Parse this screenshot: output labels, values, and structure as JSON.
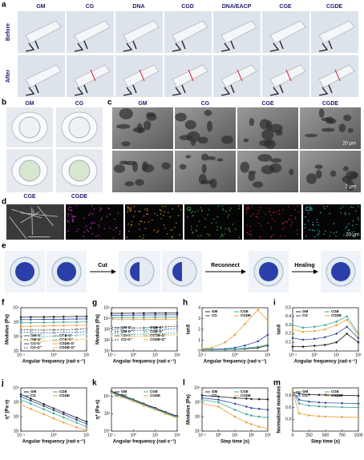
{
  "panels": {
    "a": {
      "label": "a",
      "columns": [
        "GM",
        "CG",
        "DNA",
        "CGD",
        "DNA/EACP",
        "CGE",
        "CGDE"
      ],
      "rows": [
        "Before",
        "After"
      ]
    },
    "b": {
      "label": "b",
      "samples": [
        "GM",
        "CG",
        "CGE",
        "CGDE"
      ]
    },
    "c": {
      "label": "c",
      "columns": [
        "GM",
        "CG",
        "CGE",
        "CGDE"
      ],
      "scale_bars": [
        "20 μm",
        "2 μm"
      ]
    },
    "d": {
      "label": "d",
      "elements": [
        "C",
        "N",
        "O",
        "P",
        "Ca"
      ],
      "scale_bar": "20 μm"
    },
    "e": {
      "label": "e",
      "steps": [
        "Cut",
        "Reconnect",
        "Healing"
      ]
    }
  },
  "chart_data": [
    {
      "type": "line",
      "panel": "f",
      "xlabel": "Angular frequency (rad·s⁻¹)",
      "ylabel": "Modulus (Pa)",
      "xlog": true,
      "ylog": true,
      "legend": "bottom",
      "x": [
        0.1,
        0.2,
        0.5,
        1,
        2,
        5,
        10
      ],
      "xlim": [
        0.1,
        10
      ],
      "ylim": [
        10,
        10000
      ],
      "xticks": [
        {
          "value": 0.1,
          "label": "10⁻¹"
        },
        {
          "value": 1,
          "label": "10⁰"
        },
        {
          "value": 10,
          "label": "10¹"
        }
      ],
      "yticks": [
        {
          "value": 10,
          "label": "10¹"
        },
        {
          "value": 100,
          "label": "10²"
        },
        {
          "value": 1000,
          "label": "10³"
        },
        {
          "value": 10000,
          "label": "10⁴"
        }
      ],
      "series": [
        {
          "name": "GM-G'",
          "color": "#222222",
          "dash": false,
          "values": [
            2200,
            2250,
            2300,
            2350,
            2400,
            2450,
            2500
          ]
        },
        {
          "name": "GM-G''",
          "color": "#222222",
          "dash": true,
          "values": [
            300,
            290,
            280,
            290,
            300,
            320,
            350
          ]
        },
        {
          "name": "CG-G'",
          "color": "#2f4f9f",
          "dash": false,
          "values": [
            1500,
            1520,
            1550,
            1580,
            1600,
            1650,
            1700
          ]
        },
        {
          "name": "CG-G''",
          "color": "#2f4f9f",
          "dash": true,
          "values": [
            200,
            190,
            180,
            185,
            190,
            200,
            220
          ]
        },
        {
          "name": "CGE-G'",
          "color": "#3fa79a",
          "dash": false,
          "values": [
            900,
            920,
            950,
            980,
            1000,
            1020,
            1050
          ]
        },
        {
          "name": "CGE-G''",
          "color": "#3fa79a",
          "dash": true,
          "values": [
            120,
            110,
            100,
            105,
            110,
            120,
            140
          ]
        },
        {
          "name": "CGDE-G'",
          "color": "#e8a23a",
          "dash": false,
          "values": [
            500,
            520,
            540,
            560,
            580,
            600,
            620
          ]
        },
        {
          "name": "CGDE-G''",
          "color": "#e8a23a",
          "dash": true,
          "values": [
            60,
            55,
            50,
            52,
            55,
            60,
            70
          ]
        }
      ]
    },
    {
      "type": "line",
      "panel": "g",
      "xlabel": "Angular frequency (rad·s⁻¹)",
      "ylabel": "Modulus (Pa)",
      "xlog": true,
      "ylog": true,
      "legend": "middle",
      "x": [
        0.1,
        0.3,
        1,
        3,
        10,
        30,
        100
      ],
      "xlim": [
        0.1,
        100
      ],
      "ylim": [
        10,
        100000
      ],
      "xticks": [
        {
          "value": 0.1,
          "label": "10⁻¹"
        },
        {
          "value": 1,
          "label": "10⁰"
        },
        {
          "value": 10,
          "label": "10¹"
        },
        {
          "value": 100,
          "label": "10²"
        }
      ],
      "yticks": [
        {
          "value": 10,
          "label": "10¹"
        },
        {
          "value": 100,
          "label": "10²"
        },
        {
          "value": 1000,
          "label": "10³"
        },
        {
          "value": 10000,
          "label": "10⁴"
        },
        {
          "value": 100000,
          "label": "10⁵"
        }
      ],
      "series": [
        {
          "name": "GM-G'",
          "color": "#222222",
          "dash": false,
          "values": [
            30000,
            30500,
            31000,
            31500,
            32000,
            32500,
            33000
          ]
        },
        {
          "name": "GM-G''",
          "color": "#222222",
          "dash": true,
          "values": [
            1500,
            1400,
            1350,
            1400,
            1500,
            1700,
            2000
          ]
        },
        {
          "name": "CG-G'",
          "color": "#2f4f9f",
          "dash": false,
          "values": [
            20000,
            20300,
            20600,
            21000,
            21500,
            22000,
            22500
          ]
        },
        {
          "name": "CG-G''",
          "color": "#2f4f9f",
          "dash": true,
          "values": [
            900,
            850,
            800,
            850,
            900,
            1000,
            1200
          ]
        },
        {
          "name": "CGE-G'",
          "color": "#3fa79a",
          "dash": false,
          "values": [
            12000,
            12200,
            12400,
            12700,
            13000,
            13300,
            13600
          ]
        },
        {
          "name": "CGE-G''",
          "color": "#3fa79a",
          "dash": true,
          "values": [
            400,
            370,
            350,
            360,
            380,
            420,
            500
          ]
        },
        {
          "name": "CGDE-G'",
          "color": "#e8a23a",
          "dash": false,
          "values": [
            8000,
            8100,
            8200,
            8300,
            8500,
            8700,
            9000
          ]
        },
        {
          "name": "CGDE-G''",
          "color": "#e8a23a",
          "dash": true,
          "values": [
            250,
            230,
            220,
            230,
            250,
            280,
            330
          ]
        }
      ]
    },
    {
      "type": "line",
      "panel": "h",
      "xlabel": "Angular frequency (rad·s⁻¹)",
      "ylabel": "tanδ",
      "xlog": true,
      "ylog": false,
      "legend": "top",
      "x": [
        0.1,
        0.2,
        0.5,
        1,
        2,
        5,
        10
      ],
      "xlim": [
        0.1,
        10
      ],
      "ylim": [
        0,
        4
      ],
      "xticks": [
        {
          "value": 0.1,
          "label": "10⁻¹"
        },
        {
          "value": 1,
          "label": "10⁰"
        },
        {
          "value": 10,
          "label": "10¹"
        }
      ],
      "yticks": [
        0,
        1,
        2,
        3,
        4
      ],
      "series": [
        {
          "name": "GM",
          "color": "#222222",
          "dash": false,
          "values": [
            0.12,
            0.13,
            0.14,
            0.16,
            0.2,
            0.3,
            0.5
          ]
        },
        {
          "name": "CG",
          "color": "#2f4f9f",
          "dash": false,
          "values": [
            0.15,
            0.17,
            0.2,
            0.3,
            0.5,
            0.9,
            1.5
          ]
        },
        {
          "name": "CGE",
          "color": "#3fa79a",
          "dash": false,
          "values": [
            0.12,
            0.13,
            0.15,
            0.18,
            0.25,
            0.4,
            0.6
          ]
        },
        {
          "name": "CGDE",
          "color": "#e8a23a",
          "dash": false,
          "values": [
            0.2,
            0.3,
            0.8,
            1.5,
            2.5,
            3.8,
            2.8
          ]
        }
      ]
    },
    {
      "type": "line",
      "panel": "i",
      "xlabel": "Angular frequency (rad·s⁻¹)",
      "ylabel": "tanδ",
      "xlog": true,
      "ylog": false,
      "legend": "top",
      "x": [
        0.1,
        0.3,
        1,
        3,
        10,
        30,
        100
      ],
      "xlim": [
        0.1,
        100
      ],
      "ylim": [
        0,
        0.5
      ],
      "xticks": [
        {
          "value": 0.1,
          "label": "10⁻¹"
        },
        {
          "value": 1,
          "label": "10⁰"
        },
        {
          "value": 10,
          "label": "10¹"
        },
        {
          "value": 100,
          "label": "10²"
        }
      ],
      "yticks": [
        0.1,
        0.2,
        0.3,
        0.4,
        0.5
      ],
      "series": [
        {
          "name": "GM",
          "color": "#222222",
          "dash": false,
          "values": [
            0.05,
            0.05,
            0.06,
            0.07,
            0.1,
            0.2,
            0.1
          ]
        },
        {
          "name": "CG",
          "color": "#2f4f9f",
          "dash": false,
          "values": [
            0.15,
            0.13,
            0.14,
            0.16,
            0.2,
            0.28,
            0.15
          ]
        },
        {
          "name": "CGE",
          "color": "#3fa79a",
          "dash": false,
          "values": [
            0.3,
            0.27,
            0.28,
            0.3,
            0.34,
            0.4,
            0.2
          ]
        },
        {
          "name": "CGDE",
          "color": "#e8a23a",
          "dash": false,
          "values": [
            0.25,
            0.22,
            0.23,
            0.25,
            0.3,
            0.36,
            0.18
          ]
        }
      ]
    },
    {
      "type": "line",
      "panel": "j",
      "xlabel": "Angular frequency (rad·s⁻¹)",
      "ylabel": "η* (Pa·s)",
      "xlog": true,
      "ylog": true,
      "legend": "top",
      "x": [
        0.1,
        0.2,
        0.5,
        1,
        2,
        5,
        10
      ],
      "xlim": [
        0.1,
        10
      ],
      "ylim": [
        10,
        10000
      ],
      "xticks": [
        {
          "value": 0.1,
          "label": "10⁻¹"
        },
        {
          "value": 1,
          "label": "10⁰"
        },
        {
          "value": 10,
          "label": "10¹"
        }
      ],
      "yticks": [
        {
          "value": 10,
          "label": "10¹"
        },
        {
          "value": 100,
          "label": "10²"
        },
        {
          "value": 1000,
          "label": "10³"
        },
        {
          "value": 10000,
          "label": "10⁴"
        }
      ],
      "series": [
        {
          "name": "GM",
          "color": "#222222",
          "dash": false,
          "values": [
            3500,
            1800,
            750,
            380,
            200,
            85,
            45
          ]
        },
        {
          "name": "CG",
          "color": "#2f4f9f",
          "dash": false,
          "values": [
            2500,
            1300,
            550,
            280,
            150,
            60,
            32
          ]
        },
        {
          "name": "CGE",
          "color": "#3fa79a",
          "dash": false,
          "values": [
            1500,
            800,
            330,
            170,
            90,
            38,
            20
          ]
        },
        {
          "name": "CGDE",
          "color": "#e8a23a",
          "dash": false,
          "values": [
            700,
            350,
            150,
            75,
            40,
            18,
            12
          ]
        }
      ]
    },
    {
      "type": "line",
      "panel": "k",
      "xlabel": "Angular frequency (rad·s⁻¹)",
      "ylabel": "η* (Pa·s)",
      "xlog": true,
      "ylog": true,
      "legend": "top",
      "x": [
        0.1,
        0.3,
        1,
        3,
        10,
        30,
        100
      ],
      "xlim": [
        0.1,
        100
      ],
      "ylim": [
        1,
        100000
      ],
      "xticks": [
        {
          "value": 0.1,
          "label": "10⁻¹"
        },
        {
          "value": 1,
          "label": "10⁰"
        },
        {
          "value": 10,
          "label": "10¹"
        },
        {
          "value": 100,
          "label": "10²"
        }
      ],
      "yticks": [
        {
          "value": 1,
          "label": "10⁰"
        },
        {
          "value": 100,
          "label": "10²"
        },
        {
          "value": 10000,
          "label": "10⁴"
        }
      ],
      "series": [
        {
          "name": "GM",
          "color": "#222222",
          "dash": false,
          "values": [
            40000,
            14000,
            4500,
            1500,
            480,
            160,
            55
          ]
        },
        {
          "name": "CG",
          "color": "#2f4f9f",
          "dash": false,
          "values": [
            35000,
            12000,
            4000,
            1300,
            420,
            140,
            48
          ]
        },
        {
          "name": "CGE",
          "color": "#3fa79a",
          "dash": false,
          "values": [
            30000,
            10000,
            3400,
            1100,
            360,
            120,
            40
          ]
        },
        {
          "name": "CGDE",
          "color": "#e8a23a",
          "dash": false,
          "values": [
            25000,
            8500,
            2800,
            950,
            300,
            100,
            34
          ]
        }
      ]
    },
    {
      "type": "line",
      "panel": "l",
      "xlabel": "Step time (s)",
      "ylabel": "Modulus (Pa)",
      "xlog": true,
      "ylog": true,
      "legend": "top",
      "x": [
        0.1,
        1,
        10,
        50,
        100,
        300,
        1000
      ],
      "xlim": [
        0.1,
        1000
      ],
      "ylim": [
        10,
        10000
      ],
      "xticks": [
        {
          "value": 0.1,
          "label": "10⁻¹"
        },
        {
          "value": 1,
          "label": "10⁰"
        },
        {
          "value": 10,
          "label": "10¹"
        },
        {
          "value": 100,
          "label": "10²"
        },
        {
          "value": 1000,
          "label": "10³"
        }
      ],
      "yticks": [
        {
          "value": 10,
          "label": "10¹"
        },
        {
          "value": 100,
          "label": "10²"
        },
        {
          "value": 1000,
          "label": "10³"
        },
        {
          "value": 10000,
          "label": "10⁴"
        }
      ],
      "series": [
        {
          "name": "GM",
          "color": "#222222",
          "dash": false,
          "values": [
            3000,
            2500,
            2000,
            1800,
            1700,
            1650,
            1600
          ]
        },
        {
          "name": "CG",
          "color": "#2f4f9f",
          "dash": false,
          "values": [
            2000,
            1500,
            800,
            500,
            400,
            350,
            300
          ]
        },
        {
          "name": "CGE",
          "color": "#3fa79a",
          "dash": false,
          "values": [
            1500,
            1000,
            300,
            150,
            120,
            100,
            90
          ]
        },
        {
          "name": "CGDE",
          "color": "#e8a23a",
          "dash": false,
          "values": [
            800,
            500,
            100,
            40,
            30,
            20,
            15
          ]
        }
      ]
    },
    {
      "type": "line",
      "panel": "m",
      "xlabel": "Step time (s)",
      "ylabel": "Normalized modulus",
      "xlog": false,
      "ylog": false,
      "legend": "top",
      "x": [
        0,
        100,
        250,
        400,
        500,
        750,
        1000
      ],
      "xlim": [
        0,
        1000
      ],
      "ylim": [
        0,
        1.1
      ],
      "xticks": [
        0,
        250,
        500,
        750,
        1000
      ],
      "yticks": [
        0.3,
        0.6,
        0.9
      ],
      "series": [
        {
          "name": "GM",
          "color": "#222222",
          "dash": false,
          "values": [
            1,
            0.95,
            0.93,
            0.92,
            0.92,
            0.91,
            0.9
          ]
        },
        {
          "name": "CG",
          "color": "#2f4f9f",
          "dash": false,
          "values": [
            1,
            0.8,
            0.75,
            0.73,
            0.72,
            0.71,
            0.7
          ]
        },
        {
          "name": "CGE",
          "color": "#3fa79a",
          "dash": false,
          "values": [
            1,
            0.7,
            0.65,
            0.63,
            0.62,
            0.61,
            0.6
          ]
        },
        {
          "name": "CGDE",
          "color": "#e8a23a",
          "dash": false,
          "values": [
            1,
            0.45,
            0.4,
            0.38,
            0.37,
            0.36,
            0.35
          ]
        }
      ]
    }
  ]
}
